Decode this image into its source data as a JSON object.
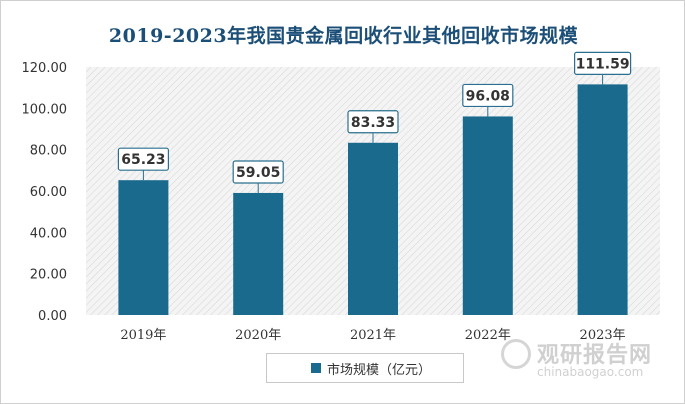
{
  "chart_data": {
    "type": "bar",
    "title": "2019-2023年我国贵金属回收行业其他回收市场规模",
    "categories": [
      "2019年",
      "2020年",
      "2021年",
      "2022年",
      "2023年"
    ],
    "series": [
      {
        "name": "市场规模（亿元）",
        "values": [
          65.23,
          59.05,
          83.33,
          96.08,
          111.59
        ]
      }
    ],
    "data_labels": [
      "65.23",
      "59.05",
      "83.33",
      "96.08",
      "111.59"
    ],
    "y_ticks": [
      "0.00",
      "20.00",
      "40.00",
      "60.00",
      "80.00",
      "100.00",
      "120.00"
    ],
    "ylim": [
      0,
      120
    ],
    "xlabel": "",
    "ylabel": "",
    "legend_position": "bottom",
    "bar_color": "#1a6a8e",
    "plot_background": "hatched light gray"
  },
  "watermark": {
    "brand_cn": "观研报告网",
    "brand_en": "chinabaogao.com"
  }
}
